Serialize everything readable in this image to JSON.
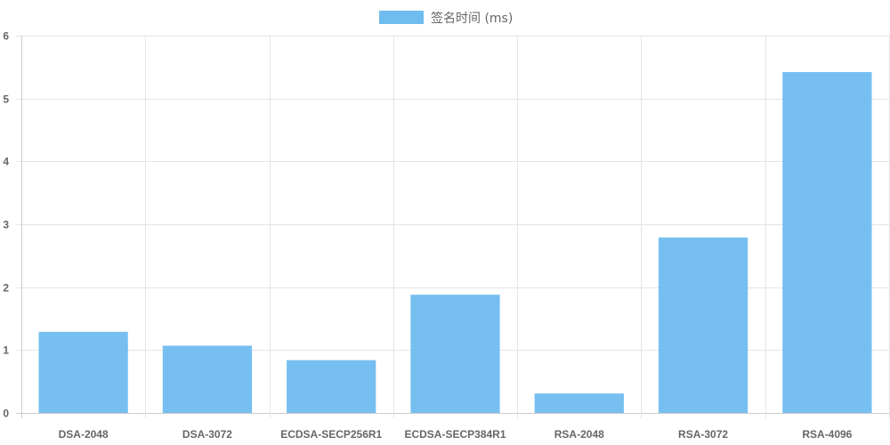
{
  "chart_data": {
    "type": "bar",
    "categories": [
      "DSA-2048",
      "DSA-3072",
      "ECDSA-SECP256R1",
      "ECDSA-SECP384R1",
      "RSA-2048",
      "RSA-3072",
      "RSA-4096"
    ],
    "series": [
      {
        "name": "签名时间 (ms)",
        "values": [
          1.29,
          1.07,
          0.84,
          1.88,
          0.31,
          2.79,
          5.42
        ]
      }
    ],
    "title": "",
    "xlabel": "",
    "ylabel": "",
    "ylim": [
      0,
      6
    ],
    "yticks": [
      0,
      1,
      2,
      3,
      4,
      5,
      6
    ],
    "grid": true,
    "legend_position": "top-center",
    "bar_color": "#6fbcef"
  }
}
